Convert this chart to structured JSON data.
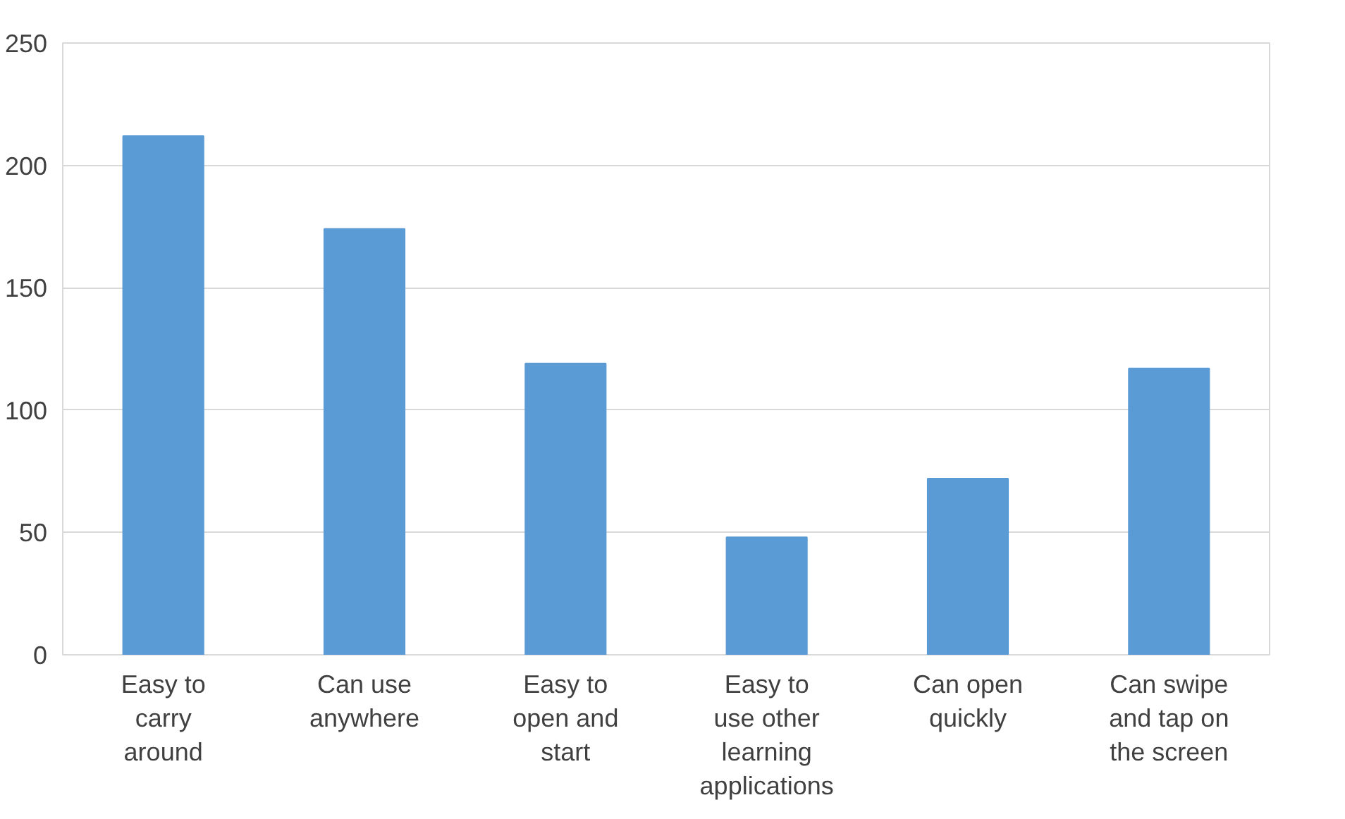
{
  "chart_data": {
    "type": "bar",
    "categories": [
      "Easy to carry around",
      "Can use anywhere",
      "Easy to open and start",
      "Easy to use other learning applications",
      "Can open quickly",
      "Can swipe and tap on the screen"
    ],
    "values": [
      212,
      174,
      119,
      48,
      72,
      117
    ],
    "color": "#5b9bd5",
    "ylim": [
      0,
      250
    ],
    "yticks": [
      0,
      50,
      100,
      150,
      200,
      250
    ],
    "grid": "y"
  }
}
